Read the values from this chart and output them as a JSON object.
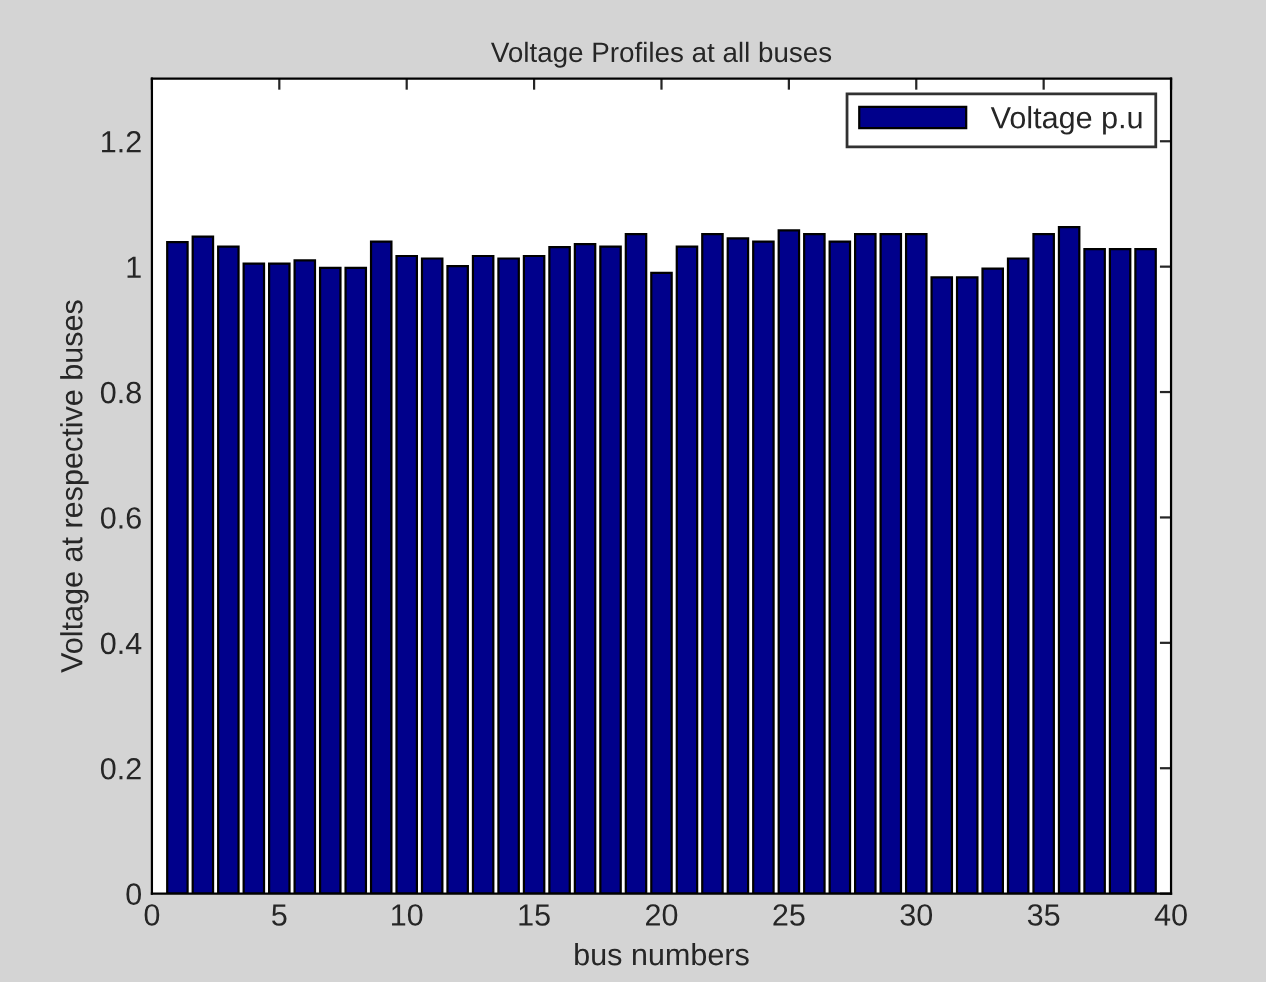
{
  "chart_data": {
    "type": "bar",
    "title": "Voltage Profiles at all buses",
    "xlabel": "bus numbers",
    "ylabel": "Voltage at respective buses",
    "x": [
      1,
      2,
      3,
      4,
      5,
      6,
      7,
      8,
      9,
      10,
      11,
      12,
      13,
      14,
      15,
      16,
      17,
      18,
      19,
      20,
      21,
      22,
      23,
      24,
      25,
      26,
      27,
      28,
      29,
      30,
      31,
      32,
      33,
      34,
      35,
      36,
      37,
      38,
      39
    ],
    "series": [
      {
        "name": "Voltage p.u",
        "color": "#00008b",
        "values": [
          1.039,
          1.048,
          1.032,
          1.005,
          1.005,
          1.01,
          0.998,
          0.998,
          1.04,
          1.017,
          1.013,
          1.001,
          1.017,
          1.013,
          1.017,
          1.031,
          1.036,
          1.032,
          1.052,
          0.99,
          1.032,
          1.052,
          1.045,
          1.04,
          1.058,
          1.052,
          1.04,
          1.052,
          1.052,
          1.052,
          0.983,
          0.983,
          0.997,
          1.013,
          1.052,
          1.063,
          1.028,
          1.028,
          1.028
        ]
      }
    ],
    "xlim": [
      0,
      40
    ],
    "xticks": [
      0,
      5,
      10,
      15,
      20,
      25,
      30,
      35,
      40
    ],
    "ylim": [
      0,
      1.3
    ],
    "yticks": [
      0,
      0.2,
      0.4,
      0.6,
      0.8,
      1,
      1.2
    ],
    "legend": "top right",
    "grid": false
  }
}
